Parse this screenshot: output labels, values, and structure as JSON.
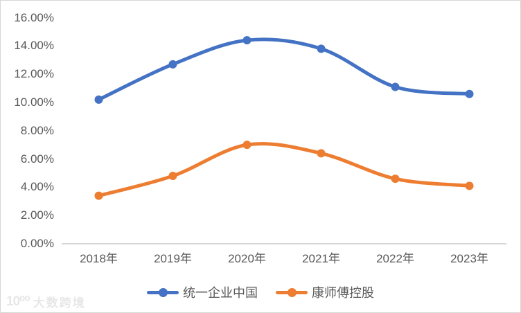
{
  "watermark": {
    "logo": "10⁰⁰",
    "text": "大数跨境"
  },
  "colors": {
    "series1": "#4472C4",
    "series2": "#ED7D31",
    "axis_text": "#595959",
    "axis_line": "#C9C9C9",
    "frame_border": "#D6D6D6"
  },
  "chart_data": {
    "type": "line",
    "title": "",
    "xlabel": "",
    "ylabel": "",
    "categories": [
      "2018年",
      "2019年",
      "2020年",
      "2021年",
      "2022年",
      "2023年"
    ],
    "series": [
      {
        "name": "统一企业中国",
        "color": "#4472C4",
        "values": [
          10.2,
          12.7,
          14.4,
          13.8,
          11.1,
          10.6
        ]
      },
      {
        "name": "康师傅控股",
        "color": "#ED7D31",
        "values": [
          3.4,
          4.8,
          7.0,
          6.4,
          4.6,
          4.1
        ]
      }
    ],
    "ylim": [
      0,
      16
    ],
    "ytick_step": 2,
    "yticks": [
      "0.00%",
      "2.00%",
      "4.00%",
      "6.00%",
      "8.00%",
      "10.00%",
      "12.00%",
      "14.00%",
      "16.00%"
    ],
    "grid": false,
    "smooth": true,
    "marker": "circle",
    "legend_position": "bottom"
  }
}
